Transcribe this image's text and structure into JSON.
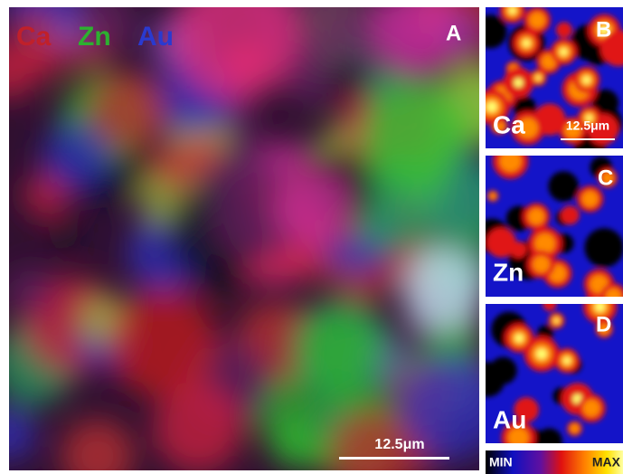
{
  "panel_a": {
    "legend": [
      "Ca",
      "Zn",
      "Au"
    ],
    "label": "A",
    "scale_bar": "12.5μm"
  },
  "panels": [
    {
      "label": "B",
      "element": "Ca",
      "scale_bar": "12.5μm"
    },
    {
      "label": "C",
      "element": "Zn"
    },
    {
      "label": "D",
      "element": "Au"
    }
  ],
  "colorbar": {
    "min": "MIN",
    "max": "MAX"
  }
}
